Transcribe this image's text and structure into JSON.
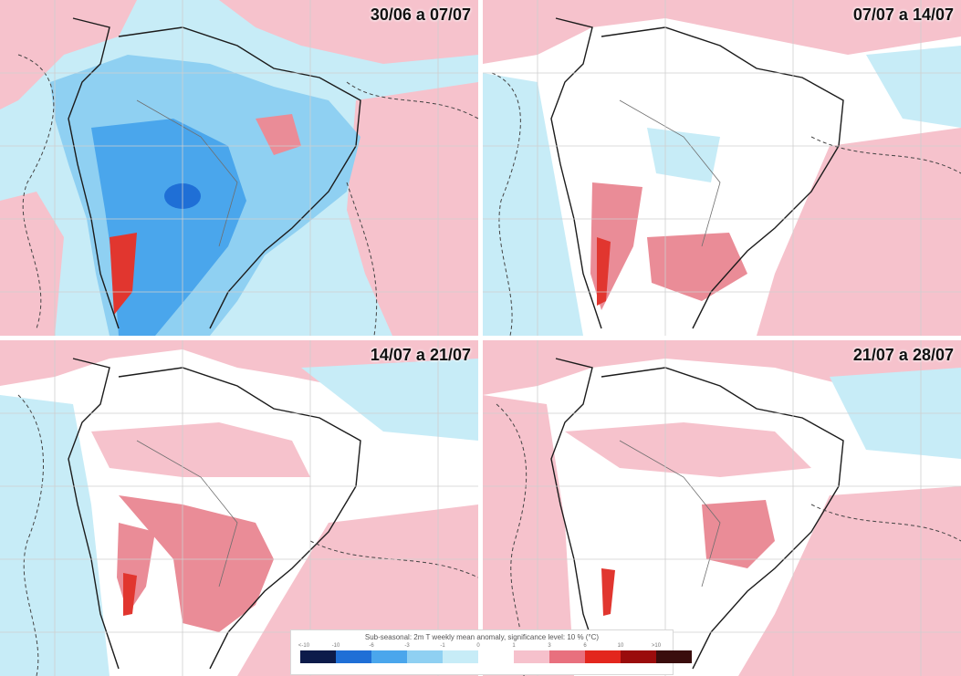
{
  "panels": [
    {
      "title": "30/06 a 07/07"
    },
    {
      "title": "07/07 a 14/07"
    },
    {
      "title": "14/07 a 21/07"
    },
    {
      "title": "21/07 a 28/07"
    }
  ],
  "legend": {
    "title": "Sub-seasonal: 2m T weekly mean anomaly, significance level: 10 % (°C)",
    "ticks": [
      "<-10",
      "-10",
      "-6",
      "-3",
      "-1",
      "0",
      "1",
      "3",
      "6",
      "10",
      ">10"
    ],
    "colors": [
      "#0d1b4a",
      "#1f6fd6",
      "#4aa6ec",
      "#8fd0f2",
      "#c7ecf7",
      "#ffffff",
      "#f6c1cc",
      "#e8707e",
      "#e3261d",
      "#9a0c0c",
      "#3a0d0d"
    ]
  },
  "colors": {
    "warm_light": "#f6c2cc",
    "warm_mid": "#ea8c97",
    "warm_strong": "#e1362f",
    "cold_light": "#c7ecf7",
    "cold_mid": "#8fd0f2",
    "cold_strong": "#4aa6ec",
    "cold_deep": "#1f6fd6",
    "coast": "#1b1b1b",
    "border": "#6e6e6e",
    "grid": "#cfcfcf"
  }
}
